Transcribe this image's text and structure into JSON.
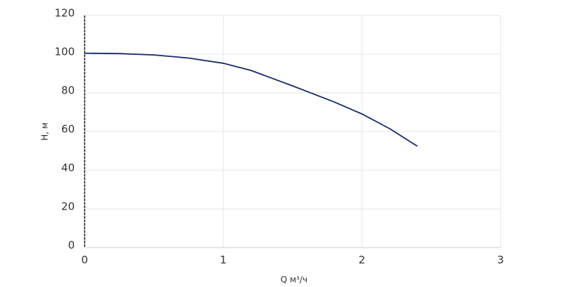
{
  "chart_data": {
    "type": "line",
    "x_label": "Q м³/ч",
    "y_label": "H, м",
    "series": [
      {
        "name": "H",
        "color": "#1b2a66",
        "x": [
          0,
          0.25,
          0.5,
          0.75,
          1,
          1.2,
          1.5,
          1.8,
          2,
          2.2,
          2.4
        ],
        "values": [
          100.5,
          100.3,
          99.6,
          98,
          95.3,
          91.6,
          83.6,
          75.3,
          69.1,
          61.5,
          52.4
        ]
      }
    ],
    "xlim": [
      0,
      3
    ],
    "xticks": [
      0,
      1,
      2,
      3
    ],
    "ylim": [
      0,
      120
    ],
    "yticks": [
      0,
      20,
      40,
      60,
      80,
      100,
      120
    ],
    "grid": true
  }
}
